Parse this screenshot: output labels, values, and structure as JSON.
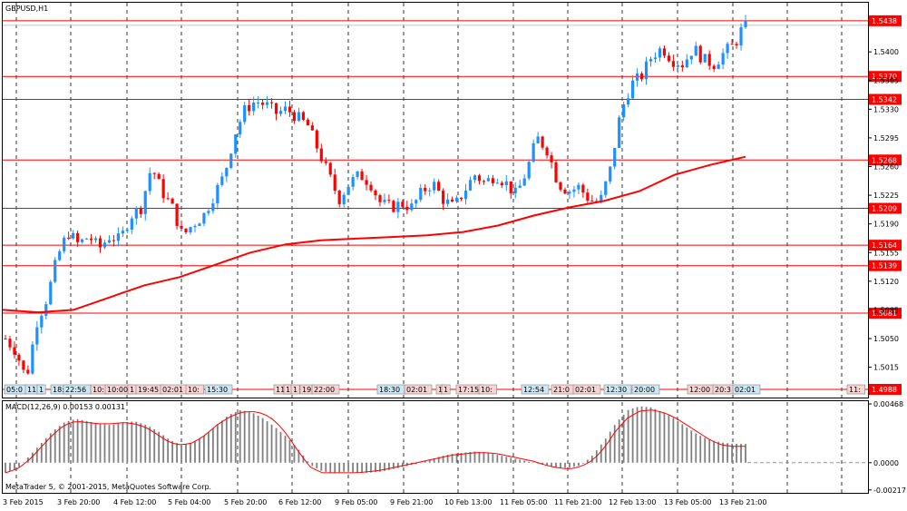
{
  "main": {
    "symbol_label": "GBPUSD,H1",
    "current_price": "1.5438",
    "price_ticks": [
      "1.5400",
      "1.5365",
      "1.5330",
      "1.5295",
      "1.5260",
      "1.5225",
      "1.5190",
      "1.5155",
      "1.5120",
      "1.5085",
      "1.5050",
      "1.5015"
    ],
    "ylim": [
      1.4978,
      1.546
    ],
    "levels": [
      "1.5438",
      "1.5370",
      "1.5342",
      "1.5268",
      "1.5209",
      "1.5164",
      "1.5139",
      "1.5081",
      "1.4988"
    ],
    "time_boxes": [
      {
        "text": "05:0",
        "color": "blue"
      },
      {
        "text": "11:",
        "color": "blue"
      },
      {
        "text": "1",
        "color": "blue"
      },
      {
        "text": "18:",
        "color": "blue"
      },
      {
        "text": "22:56",
        "color": "blue"
      },
      {
        "text": "10:",
        "color": "red"
      },
      {
        "text": "10:00",
        "color": "red"
      },
      {
        "text": "1",
        "color": "red"
      },
      {
        "text": "19:45",
        "color": "red"
      },
      {
        "text": "02:01",
        "color": "red"
      },
      {
        "text": "10:",
        "color": "red"
      },
      {
        "text": "15:30",
        "color": "blue"
      },
      {
        "text": "11:",
        "color": "red"
      },
      {
        "text": "1",
        "color": "red"
      },
      {
        "text": "1",
        "color": "red"
      },
      {
        "text": "19",
        "color": "red"
      },
      {
        "text": "22:00",
        "color": "red"
      },
      {
        "text": "18:30",
        "color": "blue"
      },
      {
        "text": "02:01",
        "color": "red"
      },
      {
        "text": "1",
        "color": "red"
      },
      {
        "text": "1",
        "color": "red"
      },
      {
        "text": "17:15",
        "color": "red"
      },
      {
        "text": "10:",
        "color": "red"
      },
      {
        "text": "12:54",
        "color": "blue"
      },
      {
        "text": "21:0",
        "color": "red"
      },
      {
        "text": "02:01",
        "color": "red"
      },
      {
        "text": "12:30",
        "color": "blue"
      },
      {
        "text": "20:00",
        "color": "blue"
      },
      {
        "text": "12:00",
        "color": "red"
      },
      {
        "text": "20:3",
        "color": "red"
      },
      {
        "text": "02:01",
        "color": "blue"
      },
      {
        "text": "11:",
        "color": "red"
      }
    ]
  },
  "macd": {
    "label": "MACD(12,26,9) 0.00153 0.00131",
    "ticks": [
      "0.00468",
      "0.0000",
      "-0.00217"
    ],
    "ylim": [
      -0.0024,
      0.0049
    ]
  },
  "copyright": "MetaTrader 5, © 2001-2015, MetaQuotes Software Corp.",
  "x_labels": [
    "3 Feb 2015",
    "3 Feb 20:00",
    "4 Feb 12:00",
    "5 Feb 04:00",
    "5 Feb 20:00",
    "6 Feb 12:00",
    "9 Feb 05:00",
    "9 Feb 21:00",
    "10 Feb 13:00",
    "11 Feb 05:00",
    "11 Feb 21:00",
    "12 Feb 13:00",
    "13 Feb 05:00",
    "13 Feb 21:00"
  ],
  "chart_data": [
    {
      "type": "candlestick",
      "title": "GBPUSD,H1",
      "x_tick_labels": [
        "3 Feb 2015",
        "3 Feb 20:00",
        "4 Feb 12:00",
        "5 Feb 04:00",
        "5 Feb 20:00",
        "6 Feb 12:00",
        "9 Feb 05:00",
        "9 Feb 21:00",
        "10 Feb 13:00",
        "11 Feb 05:00",
        "11 Feb 21:00",
        "12 Feb 13:00",
        "13 Feb 05:00",
        "13 Feb 21:00"
      ],
      "y_ticks": [
        "1.5400",
        "1.5365",
        "1.5330",
        "1.5295",
        "1.5260",
        "1.5225",
        "1.5190",
        "1.5155",
        "1.5120",
        "1.5085",
        "1.5050",
        "1.5015"
      ],
      "ylim": [
        1.4978,
        1.546
      ],
      "grid": "vertical-dashed",
      "colors": {
        "up": "#1e90ff",
        "down": "#ff0000",
        "ma": "#ff0000"
      },
      "close_path": [
        1.505,
        1.5035,
        1.5,
        1.507,
        1.51,
        1.515,
        1.518,
        1.5165,
        1.5175,
        1.516,
        1.5175,
        1.517,
        1.52,
        1.521,
        1.526,
        1.523,
        1.521,
        1.5175,
        1.519,
        1.52,
        1.5225,
        1.525,
        1.53,
        1.533,
        1.534,
        1.5335,
        1.5325,
        1.533,
        1.532,
        1.531,
        1.528,
        1.525,
        1.522,
        1.524,
        1.525,
        1.524,
        1.5215,
        1.521,
        1.5215,
        1.521,
        1.523,
        1.524,
        1.522,
        1.521,
        1.523,
        1.525,
        1.524,
        1.525,
        1.524,
        1.5225,
        1.5255,
        1.5295,
        1.528,
        1.524,
        1.523,
        1.5235,
        1.522,
        1.5215,
        1.5255,
        1.5325,
        1.536,
        1.537,
        1.5395,
        1.5405,
        1.539,
        1.5385,
        1.5405,
        1.539,
        1.5385,
        1.54,
        1.541,
        1.5438
      ],
      "moving_average": [
        1.5085,
        1.5082,
        1.5085,
        1.51,
        1.5115,
        1.5125,
        1.514,
        1.5155,
        1.5165,
        1.517,
        1.5172,
        1.5174,
        1.5176,
        1.518,
        1.5188,
        1.52,
        1.521,
        1.5218,
        1.523,
        1.525,
        1.5262,
        1.5272
      ],
      "levels": [
        1.5438,
        1.537,
        1.5342,
        1.5268,
        1.5209,
        1.5164,
        1.5139,
        1.5081,
        1.4988
      ]
    },
    {
      "type": "bar",
      "title": "MACD(12,26,9) 0.00153 0.00131",
      "y_ticks": [
        "0.00468",
        "0.0000",
        "-0.00217"
      ],
      "ylim": [
        -0.0024,
        0.0049
      ],
      "histogram_path": [
        -0.0008,
        -0.0005,
        0.0005,
        0.0015,
        0.0025,
        0.0032,
        0.0035,
        0.0033,
        0.0031,
        0.003,
        0.0032,
        0.0033,
        0.003,
        0.0025,
        0.0018,
        0.0014,
        0.0016,
        0.0022,
        0.003,
        0.0038,
        0.0042,
        0.004,
        0.0035,
        0.0028,
        0.002,
        0.001,
        -0.0002,
        -0.0007,
        -0.0008,
        -0.0007,
        -0.0008,
        -0.0008,
        -0.0007,
        -0.0005,
        -0.0003,
        -0.0001,
        0.0002,
        0.0005,
        0.0007,
        0.0008,
        0.0009,
        0.0008,
        0.0006,
        0.0004,
        0.0002,
        0.0,
        -0.0002,
        -0.0004,
        -0.0004,
        -0.0002,
        0.0006,
        0.0018,
        0.0032,
        0.0042,
        0.0045,
        0.0044,
        0.004,
        0.0035,
        0.0028,
        0.0022,
        0.0018,
        0.0016,
        0.0015,
        0.0015
      ],
      "signal_path": [
        -0.0008,
        -0.0005,
        0.0002,
        0.0012,
        0.0022,
        0.003,
        0.0033,
        0.0032,
        0.0031,
        0.0031,
        0.0032,
        0.0031,
        0.0028,
        0.0022,
        0.0016,
        0.0014,
        0.0016,
        0.0022,
        0.003,
        0.0036,
        0.004,
        0.0041,
        0.0039,
        0.0033,
        0.0022,
        0.0008,
        -0.0004,
        -0.0008,
        -0.0008,
        -0.0008,
        -0.0008,
        -0.0007,
        -0.0006,
        -0.0004,
        -0.0002,
        0.0,
        0.0002,
        0.0004,
        0.0006,
        0.0007,
        0.0008,
        0.0008,
        0.0007,
        0.0005,
        0.0003,
        0.0001,
        -0.0002,
        -0.0004,
        -0.0005,
        -0.0003,
        0.0002,
        0.0012,
        0.0026,
        0.0036,
        0.0041,
        0.0042,
        0.004,
        0.0036,
        0.003,
        0.0024,
        0.0018,
        0.0014,
        0.0013,
        0.0013
      ]
    }
  ]
}
